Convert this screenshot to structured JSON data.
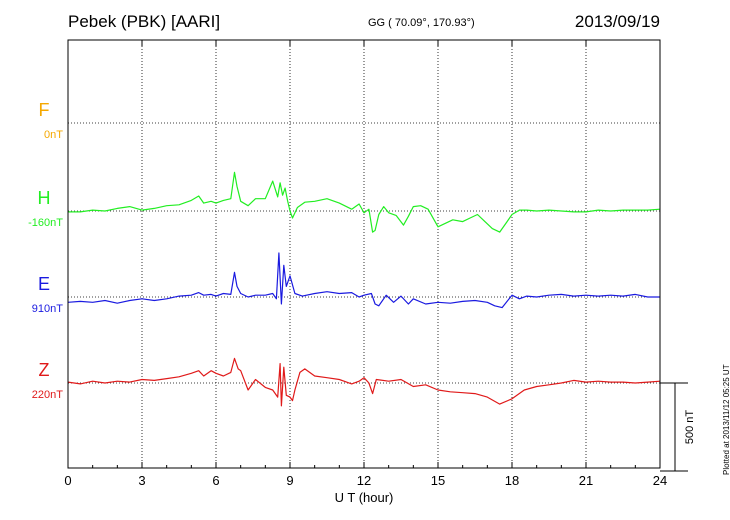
{
  "header": {
    "title": "Pebek (PBK)  [AARI]",
    "coords": "GG ( 70.09°, 170.93°)",
    "date": "2013/09/19",
    "plotted": "Plotted at 2013/11/12 05:25 UT"
  },
  "chart_data": {
    "type": "line",
    "title": "Pebek (PBK)  [AARI]",
    "xlabel": "U T (hour)",
    "ylabel": "",
    "xlim": [
      0,
      24
    ],
    "x_ticks": [
      0,
      3,
      6,
      9,
      12,
      15,
      18,
      21,
      24
    ],
    "scale_bar": {
      "label": "500 nT",
      "value_nT": 500
    },
    "grid": true,
    "series": [
      {
        "name": "F",
        "offset_label": "0nT",
        "color": "#f5a800",
        "baseline_label": "0nT",
        "x": [],
        "y": []
      },
      {
        "name": "H",
        "offset_label": "-160nT",
        "color": "#22ee22",
        "x": [
          0,
          0.5,
          1,
          1.5,
          2,
          2.5,
          3,
          3.5,
          4,
          4.5,
          5,
          5.3,
          5.5,
          5.8,
          6,
          6.3,
          6.6,
          6.75,
          6.85,
          7,
          7.3,
          7.6,
          8,
          8.3,
          8.5,
          8.6,
          8.7,
          8.8,
          8.9,
          9,
          9.1,
          9.3,
          9.6,
          10,
          10.5,
          11,
          11.5,
          11.8,
          12,
          12.2,
          12.35,
          12.45,
          12.6,
          12.8,
          13,
          13.3,
          13.6,
          13.8,
          14,
          14.3,
          14.6,
          15,
          15.3,
          15.6,
          16,
          16.3,
          16.6,
          16.9,
          17.2,
          17.5,
          17.8,
          18,
          18.3,
          18.6,
          19,
          19.5,
          20,
          20.5,
          21,
          21.5,
          22,
          22.5,
          23,
          23.5,
          24
        ],
        "y": [
          -5,
          -5,
          5,
          0,
          15,
          25,
          5,
          15,
          30,
          35,
          60,
          85,
          45,
          55,
          45,
          60,
          70,
          220,
          140,
          55,
          30,
          70,
          70,
          170,
          80,
          160,
          90,
          130,
          60,
          0,
          -40,
          20,
          50,
          55,
          70,
          45,
          10,
          40,
          -10,
          10,
          -120,
          -110,
          -20,
          25,
          -10,
          -25,
          -80,
          -30,
          25,
          30,
          10,
          -90,
          -70,
          -50,
          -60,
          -40,
          -20,
          -60,
          -100,
          -120,
          -60,
          -20,
          5,
          5,
          0,
          5,
          0,
          -5,
          -5,
          5,
          0,
          5,
          5,
          5,
          10
        ]
      },
      {
        "name": "E",
        "offset_label": "910nT",
        "color": "#1a1ae0",
        "x": [
          0,
          0.5,
          1,
          1.5,
          2,
          2.5,
          3,
          3.5,
          4,
          4.5,
          5,
          5.3,
          5.5,
          5.8,
          6,
          6.3,
          6.6,
          6.75,
          6.85,
          7,
          7.3,
          7.6,
          8,
          8.3,
          8.45,
          8.55,
          8.65,
          8.75,
          8.85,
          9,
          9.2,
          9.5,
          10,
          10.5,
          11,
          11.5,
          11.8,
          12,
          12.3,
          12.45,
          12.6,
          12.9,
          13.2,
          13.5,
          13.8,
          14,
          14.5,
          15,
          15.5,
          16,
          16.5,
          17,
          17.3,
          17.6,
          18,
          18.3,
          18.6,
          19,
          19.5,
          20,
          20.5,
          21,
          21.5,
          22,
          22.5,
          23,
          23.5,
          24
        ],
        "y": [
          -30,
          -25,
          -30,
          -20,
          -35,
          -20,
          -10,
          -20,
          -10,
          5,
          10,
          25,
          10,
          15,
          5,
          20,
          15,
          140,
          60,
          20,
          0,
          10,
          10,
          20,
          -10,
          250,
          -40,
          180,
          60,
          120,
          20,
          5,
          20,
          30,
          20,
          25,
          0,
          10,
          20,
          -40,
          -50,
          10,
          -30,
          5,
          -40,
          -10,
          -40,
          -30,
          -35,
          -25,
          -20,
          -30,
          -50,
          -60,
          10,
          -10,
          5,
          0,
          10,
          15,
          5,
          10,
          5,
          10,
          5,
          15,
          0,
          0
        ]
      },
      {
        "name": "Z",
        "offset_label": "220nT",
        "color": "#e01a1a",
        "x": [
          0,
          0.5,
          1,
          1.5,
          2,
          2.5,
          3,
          3.5,
          4,
          4.5,
          5,
          5.3,
          5.5,
          5.8,
          6,
          6.3,
          6.6,
          6.75,
          6.9,
          7,
          7.3,
          7.6,
          8,
          8.3,
          8.5,
          8.6,
          8.65,
          8.75,
          8.85,
          9,
          9.1,
          9.2,
          9.4,
          9.6,
          10,
          10.5,
          11,
          11.5,
          11.8,
          12,
          12.2,
          12.35,
          12.5,
          13,
          13.5,
          14,
          14.5,
          15,
          15.5,
          16,
          16.5,
          17,
          17.5,
          18,
          18.5,
          19,
          19.5,
          20,
          20.5,
          21,
          21.5,
          22,
          22.5,
          23,
          23.5,
          24
        ],
        "y": [
          5,
          -5,
          10,
          0,
          10,
          5,
          20,
          15,
          25,
          35,
          55,
          70,
          40,
          70,
          55,
          40,
          60,
          140,
          80,
          70,
          -40,
          20,
          -25,
          -40,
          -80,
          110,
          -130,
          90,
          -70,
          -80,
          -100,
          -40,
          60,
          80,
          40,
          30,
          20,
          -5,
          10,
          30,
          0,
          -60,
          20,
          10,
          20,
          -20,
          -10,
          -40,
          -50,
          -55,
          -60,
          -80,
          -120,
          -90,
          -40,
          -20,
          -10,
          0,
          15,
          5,
          10,
          5,
          5,
          0,
          5,
          10
        ]
      }
    ]
  }
}
